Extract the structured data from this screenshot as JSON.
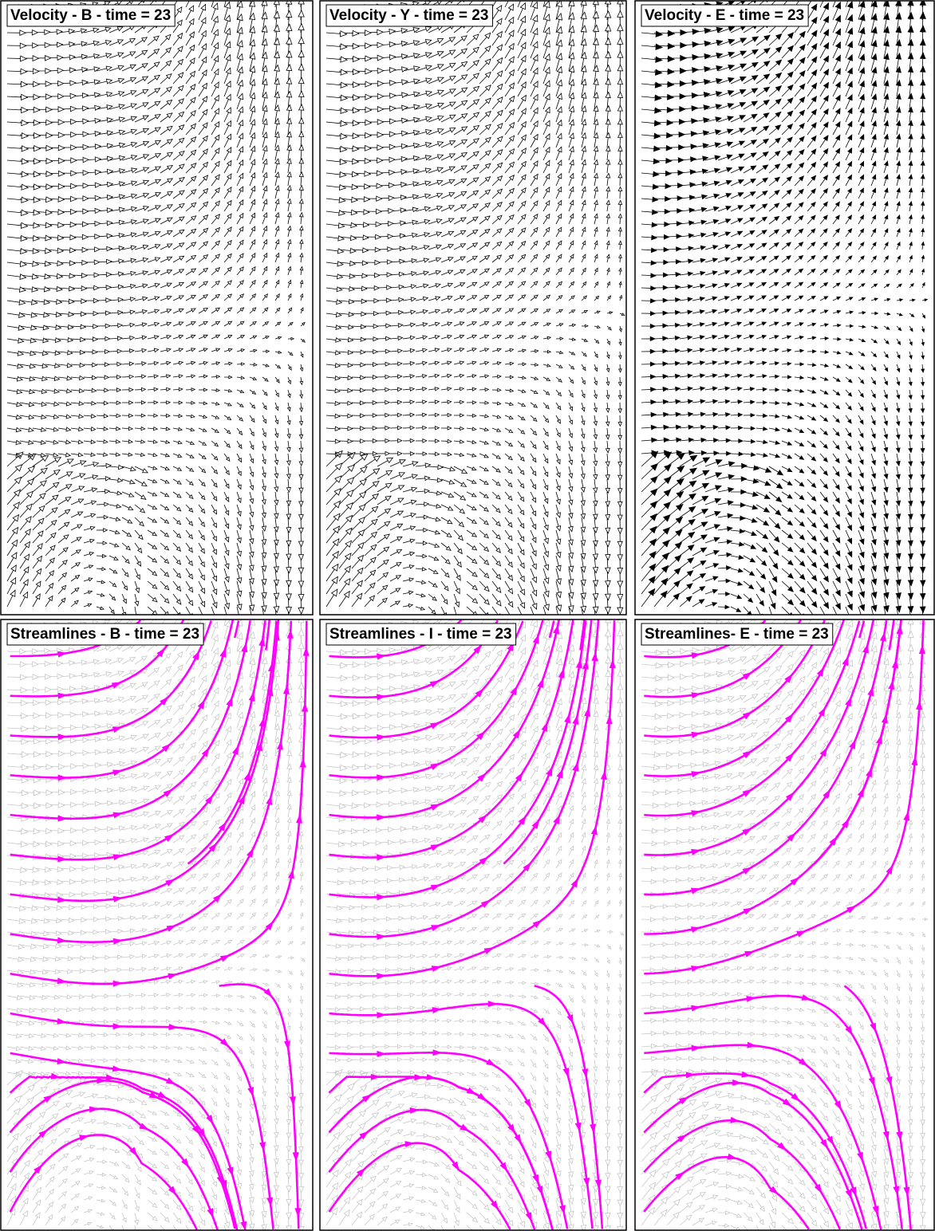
{
  "panels": [
    {
      "title": "Velocity - B - time = 23"
    },
    {
      "title": "Velocity - Y - time = 23"
    },
    {
      "title": "Velocity - E - time = 23"
    },
    {
      "title": "Streamlines - B - time = 23"
    },
    {
      "title": "Streamlines - I - time = 23"
    },
    {
      "title": "Streamlines- E - time = 23"
    }
  ]
}
